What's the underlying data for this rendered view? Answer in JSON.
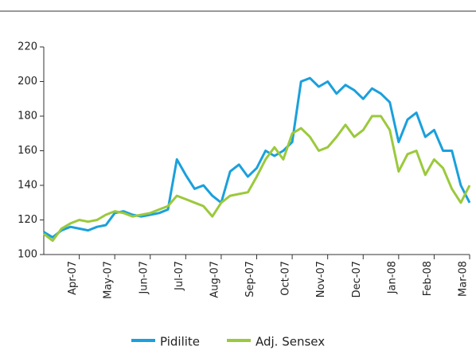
{
  "chart_data": {
    "type": "line",
    "categories": [
      null,
      null,
      null,
      null,
      "Apr-07",
      null,
      null,
      null,
      "May-07",
      null,
      null,
      null,
      "Jun-07",
      null,
      null,
      null,
      "Jul-07",
      null,
      null,
      null,
      "Aug-07",
      null,
      null,
      null,
      "Sep-07",
      null,
      null,
      null,
      "Oct-07",
      null,
      null,
      null,
      "Nov-07",
      null,
      null,
      null,
      "Dec-07",
      null,
      null,
      null,
      "Jan-08",
      null,
      null,
      null,
      "Feb-08",
      null,
      null,
      null,
      "Mar-08"
    ],
    "series": [
      {
        "name": "Pidilite",
        "color": "#1aa0dc",
        "values": [
          113,
          110,
          114,
          116,
          115,
          114,
          116,
          117,
          124,
          125,
          123,
          122,
          123,
          124,
          126,
          155,
          146,
          138,
          140,
          134,
          130,
          148,
          152,
          145,
          150,
          160,
          157,
          160,
          165,
          200,
          202,
          197,
          200,
          193,
          198,
          195,
          190,
          196,
          193,
          188,
          165,
          178,
          182,
          168,
          172,
          160,
          160,
          140,
          130
        ]
      },
      {
        "name": "Adj. Sensex",
        "color": "#9bc93c",
        "values": [
          112,
          108,
          115,
          118,
          120,
          119,
          120,
          123,
          125,
          124,
          122,
          123,
          124,
          126,
          128,
          134,
          132,
          130,
          128,
          122,
          130,
          134,
          135,
          136,
          145,
          155,
          162,
          155,
          170,
          173,
          168,
          160,
          162,
          168,
          175,
          168,
          172,
          180,
          180,
          172,
          148,
          158,
          160,
          146,
          155,
          150,
          138,
          130,
          140
        ]
      }
    ],
    "ylim": [
      100,
      220
    ],
    "yticks": [
      100,
      120,
      140,
      160,
      180,
      200,
      220
    ],
    "legend": "bottom"
  }
}
